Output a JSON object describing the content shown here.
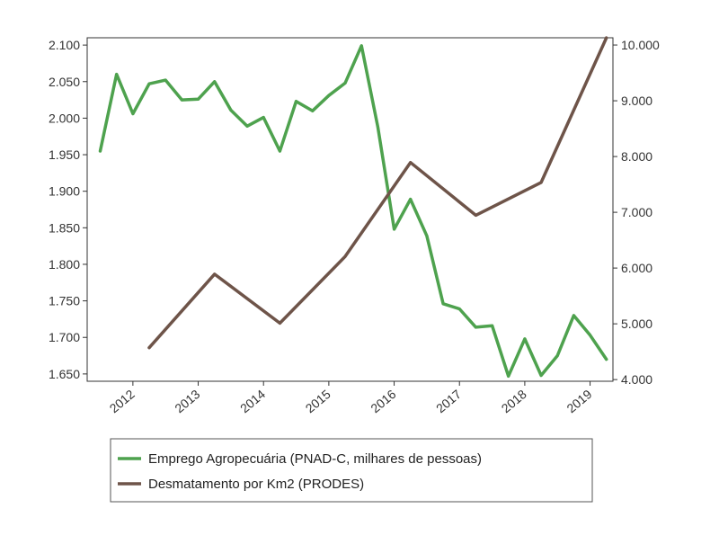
{
  "chart_data": {
    "type": "line",
    "legend_position": "bottom",
    "grid": false,
    "x_ticks": [
      "2012",
      "2013",
      "2014",
      "2015",
      "2016",
      "2017",
      "2018",
      "2019"
    ],
    "x_range": [
      2011.3,
      2019.35
    ],
    "y_left": {
      "range": [
        1640,
        2110
      ],
      "ticks": [
        1650,
        1700,
        1750,
        1800,
        1850,
        1900,
        1950,
        2000,
        2050,
        2100
      ],
      "tick_labels": [
        "1.650",
        "1.700",
        "1.750",
        "1.800",
        "1.850",
        "1.900",
        "1.950",
        "2.000",
        "2.050",
        "2.100"
      ]
    },
    "y_right": {
      "range": [
        3970,
        10130
      ],
      "ticks": [
        4000,
        5000,
        6000,
        7000,
        8000,
        9000,
        10000
      ],
      "tick_labels": [
        "4.000",
        "5.000",
        "6.000",
        "7.000",
        "8.000",
        "9.000",
        "10.000"
      ]
    },
    "series": [
      {
        "name": "Emprego Agropecuária (PNAD-C, milhares de pessoas)",
        "axis": "left",
        "color": "#4ea24e",
        "x": [
          2011.5,
          2011.75,
          2012.0,
          2012.25,
          2012.5,
          2012.75,
          2013.0,
          2013.25,
          2013.5,
          2013.75,
          2014.0,
          2014.25,
          2014.5,
          2014.75,
          2015.0,
          2015.25,
          2015.5,
          2015.75,
          2016.0,
          2016.25,
          2016.5,
          2016.75,
          2017.0,
          2017.25,
          2017.5,
          2017.75,
          2018.0,
          2018.25,
          2018.5,
          2018.75,
          2019.0,
          2019.25
        ],
        "values": [
          1955,
          2060,
          2006,
          2047,
          2052,
          2025,
          2026,
          2050,
          2011,
          1989,
          2001,
          1955,
          2023,
          2010,
          2031,
          2048,
          2099,
          1988,
          1848,
          1889,
          1839,
          1746,
          1739,
          1714,
          1716,
          1647,
          1698,
          1648,
          1675,
          1730,
          1703,
          1670
        ]
      },
      {
        "name": "Desmatamento por Km2 (PRODES)",
        "axis": "right",
        "color": "#6e5449",
        "x": [
          2012.25,
          2013.25,
          2014.25,
          2015.25,
          2016.25,
          2017.25,
          2018.25,
          2019.25
        ],
        "values": [
          4571,
          5891,
          5012,
          6207,
          7893,
          6947,
          7536,
          10129
        ]
      }
    ]
  }
}
